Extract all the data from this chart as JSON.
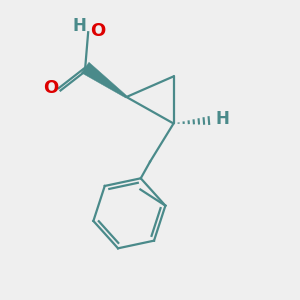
{
  "bg_color": "#efefef",
  "bond_color": "#4a8a8a",
  "o_color": "#dd0000",
  "h_color": "#4a8a8a",
  "line_width": 1.6,
  "figsize": [
    3.0,
    3.0
  ],
  "dpi": 100,
  "xlim": [
    0,
    10
  ],
  "ylim": [
    0,
    10
  ]
}
